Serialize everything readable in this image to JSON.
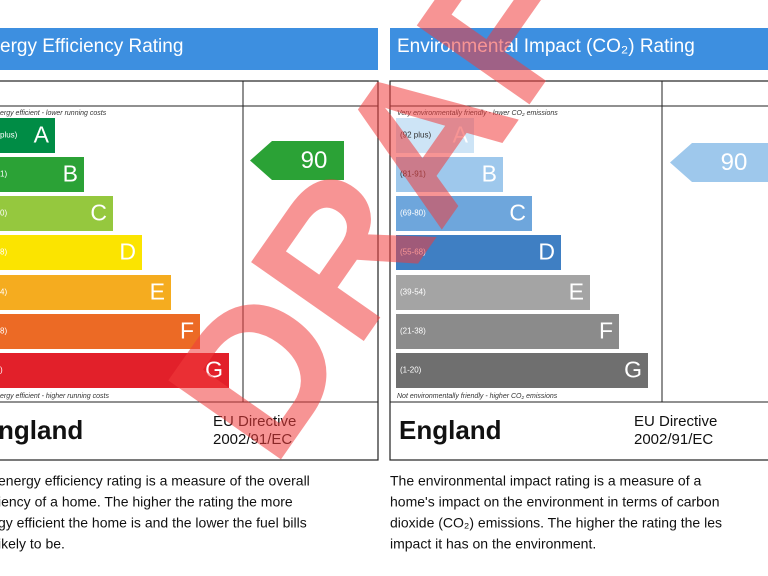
{
  "panels": [
    {
      "title": "ergy Efficiency Rating",
      "top_note": "ergy efficient - lower running costs",
      "bottom_note": "ergy efficient - higher running costs",
      "bands": [
        {
          "range": "plus)",
          "letter": "A",
          "color": "#008c45"
        },
        {
          "range": "1)",
          "letter": "B",
          "color": "#2ba236"
        },
        {
          "range": "0)",
          "letter": "C",
          "color": "#95c83e"
        },
        {
          "range": "8)",
          "letter": "D",
          "color": "#fbe400"
        },
        {
          "range": "4)",
          "letter": "E",
          "color": "#f5ac1f"
        },
        {
          "range": "8)",
          "letter": "F",
          "color": "#ec6a25"
        },
        {
          "range": ")",
          "letter": "G",
          "color": "#e2202a"
        }
      ],
      "rating": "90",
      "rating_color": "#2ba236",
      "country": "ngland",
      "directive": [
        "EU Directive",
        "2002/91/EC"
      ],
      "description": [
        "energy efficiency rating is a measure of the overall",
        "iency of a home. The higher the rating the more",
        "gy efficient the home is and the lower the fuel bills",
        "ikely to be."
      ]
    },
    {
      "title": "Environmental Impact (CO₂) Rating",
      "top_note": "Very environmentally friendly - lower CO₂ emissions",
      "bottom_note": "Not environmentally friendly - higher CO₂ emissions",
      "bands": [
        {
          "range": "(92 plus)",
          "letter": "A",
          "color": "#cde4f6"
        },
        {
          "range": "(81-91)",
          "letter": "B",
          "color": "#9ec8ec"
        },
        {
          "range": "(69-80)",
          "letter": "C",
          "color": "#6ea6dc"
        },
        {
          "range": "(55-68)",
          "letter": "D",
          "color": "#3f7fc3"
        },
        {
          "range": "(39-54)",
          "letter": "E",
          "color": "#a4a4a4"
        },
        {
          "range": "(21-38)",
          "letter": "F",
          "color": "#8b8b8b"
        },
        {
          "range": "(1-20)",
          "letter": "G",
          "color": "#6f6f6f"
        }
      ],
      "rating": "90",
      "rating_color": "#9ec8ec",
      "country": "England",
      "directive": [
        "EU Directive",
        "2002/91/EC"
      ],
      "description": [
        "The environmental impact rating is a measure of a",
        "home's impact on the environment in terms of carbon",
        "dioxide (CO₂) emissions. The higher the rating the les",
        "impact it has on the environment."
      ]
    }
  ],
  "watermark": "DRAFT"
}
